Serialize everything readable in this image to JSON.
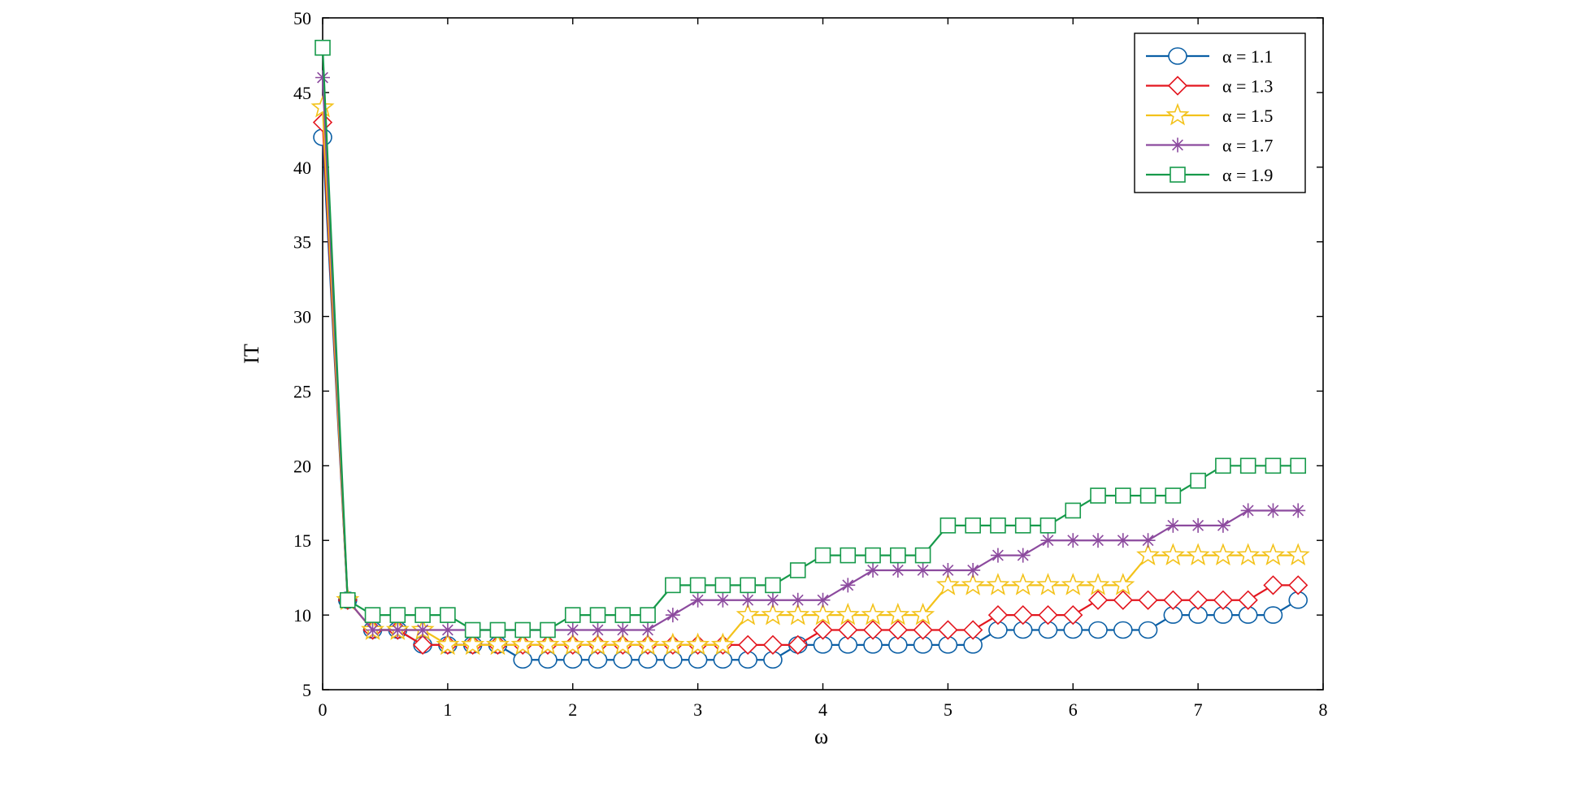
{
  "chart_data": {
    "type": "line",
    "xlabel": "ω",
    "ylabel": "IT",
    "xlim": [
      0,
      8
    ],
    "ylim": [
      5,
      50
    ],
    "xticks": [
      0,
      1,
      2,
      3,
      4,
      5,
      6,
      7,
      8
    ],
    "yticks": [
      5,
      10,
      15,
      20,
      25,
      30,
      35,
      40,
      45,
      50
    ],
    "grid": false,
    "legend_position": "top-right",
    "x": [
      0,
      0.2,
      0.4,
      0.6,
      0.8,
      1.0,
      1.2,
      1.4,
      1.6,
      1.8,
      2.0,
      2.2,
      2.4,
      2.6,
      2.8,
      3.0,
      3.2,
      3.4,
      3.6,
      3.8,
      4.0,
      4.2,
      4.4,
      4.6,
      4.8,
      5.0,
      5.2,
      5.4,
      5.6,
      5.8,
      6.0,
      6.2,
      6.4,
      6.6,
      6.8,
      7.0,
      7.2,
      7.4,
      7.6,
      7.8
    ],
    "series": [
      {
        "name": "α = 1.1",
        "color": "#0b5fa5",
        "marker": "circle",
        "values": [
          42,
          11,
          9,
          9,
          8,
          8,
          8,
          8,
          7,
          7,
          7,
          7,
          7,
          7,
          7,
          7,
          7,
          7,
          7,
          8,
          8,
          8,
          8,
          8,
          8,
          8,
          8,
          9,
          9,
          9,
          9,
          9,
          9,
          9,
          10,
          10,
          10,
          10,
          10,
          11
        ]
      },
      {
        "name": "α = 1.3",
        "color": "#e3161f",
        "marker": "diamond",
        "values": [
          43,
          11,
          9,
          9,
          8,
          8,
          8,
          8,
          8,
          8,
          8,
          8,
          8,
          8,
          8,
          8,
          8,
          8,
          8,
          8,
          9,
          9,
          9,
          9,
          9,
          9,
          9,
          10,
          10,
          10,
          10,
          11,
          11,
          11,
          11,
          11,
          11,
          11,
          12,
          12
        ]
      },
      {
        "name": "α = 1.5",
        "color": "#f3c21a",
        "marker": "star",
        "values": [
          44,
          11,
          9,
          9,
          9,
          8,
          8,
          8,
          8,
          8,
          8,
          8,
          8,
          8,
          8,
          8,
          8,
          10,
          10,
          10,
          10,
          10,
          10,
          10,
          10,
          12,
          12,
          12,
          12,
          12,
          12,
          12,
          12,
          14,
          14,
          14,
          14,
          14,
          14,
          14
        ]
      },
      {
        "name": "α = 1.7",
        "color": "#8c4a9e",
        "marker": "asterisk",
        "values": [
          46,
          11,
          9,
          9,
          9,
          9,
          9,
          9,
          9,
          9,
          9,
          9,
          9,
          9,
          10,
          11,
          11,
          11,
          11,
          11,
          11,
          12,
          13,
          13,
          13,
          13,
          13,
          14,
          14,
          15,
          15,
          15,
          15,
          15,
          16,
          16,
          16,
          17,
          17,
          17
        ]
      },
      {
        "name": "α = 1.9",
        "color": "#179a4b",
        "marker": "square",
        "values": [
          48,
          11,
          10,
          10,
          10,
          10,
          9,
          9,
          9,
          9,
          10,
          10,
          10,
          10,
          12,
          12,
          12,
          12,
          12,
          13,
          14,
          14,
          14,
          14,
          14,
          16,
          16,
          16,
          16,
          16,
          17,
          18,
          18,
          18,
          18,
          19,
          20,
          20,
          20,
          20
        ]
      }
    ]
  }
}
